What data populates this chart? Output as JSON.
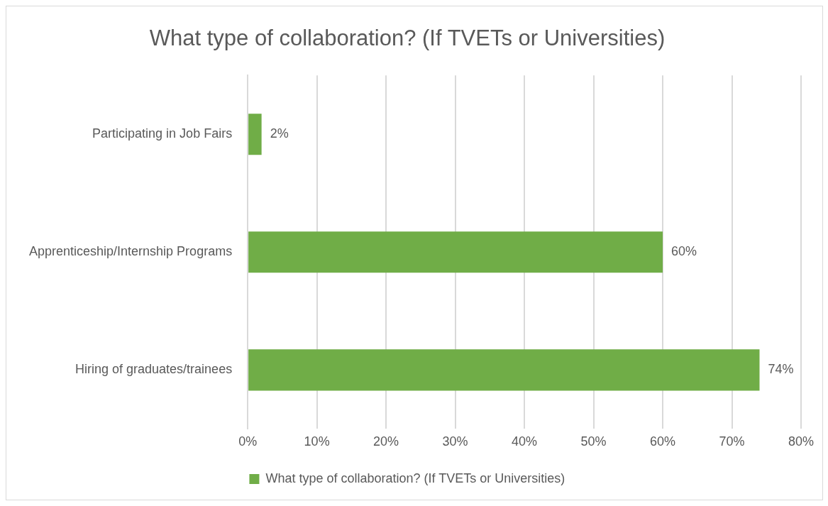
{
  "chart_data": {
    "type": "bar",
    "orientation": "horizontal",
    "title": "What type of collaboration? (If TVETs or Universities)",
    "categories": [
      "Participating in Job Fairs",
      "Apprenticeship/Internship Programs",
      "Hiring of graduates/trainees"
    ],
    "series": [
      {
        "name": "What type of collaboration? (If TVETs or Universities)",
        "color": "#70ad47",
        "values": [
          2,
          60,
          74
        ],
        "value_labels": [
          "2%",
          "60%",
          "74%"
        ]
      }
    ],
    "xlim": [
      0,
      80
    ],
    "xticks": [
      {
        "value": 0,
        "label": "0%"
      },
      {
        "value": 10,
        "label": "10%"
      },
      {
        "value": 20,
        "label": "20%"
      },
      {
        "value": 30,
        "label": "30%"
      },
      {
        "value": 40,
        "label": "40%"
      },
      {
        "value": 50,
        "label": "50%"
      },
      {
        "value": 60,
        "label": "60%"
      },
      {
        "value": 70,
        "label": "70%"
      },
      {
        "value": 80,
        "label": "80%"
      }
    ],
    "grid": "x",
    "legend": "bottom"
  }
}
